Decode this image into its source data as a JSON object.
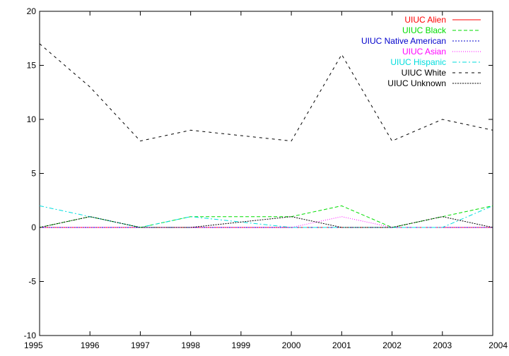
{
  "chart_data": {
    "type": "line",
    "title": "",
    "xlabel": "",
    "ylabel": "",
    "x": [
      1995,
      1996,
      1997,
      1998,
      1999,
      2000,
      2001,
      2002,
      2003,
      2004
    ],
    "xlim": [
      1995,
      2004
    ],
    "ylim": [
      -10,
      20
    ],
    "y_ticks": [
      -10,
      -5,
      0,
      5,
      10,
      15,
      20
    ],
    "x_ticks": [
      1995,
      1996,
      1997,
      1998,
      1999,
      2000,
      2001,
      2002,
      2003,
      2004
    ],
    "grid": false,
    "legend_position": "top-right",
    "series": [
      {
        "name": "UIUC Alien",
        "color": "#ff0000",
        "dash": "solid",
        "values": [
          0,
          0,
          0,
          0,
          0,
          0,
          0,
          0,
          0,
          0
        ]
      },
      {
        "name": "UIUC Black",
        "color": "#00dd00",
        "dash": "dash",
        "values": [
          0,
          1,
          0,
          1,
          1,
          1,
          2,
          0,
          1,
          2
        ]
      },
      {
        "name": "UIUC Native American",
        "color": "#0000cc",
        "dash": "dot",
        "values": [
          0,
          0,
          0,
          0,
          0,
          0,
          0,
          0,
          0,
          0
        ]
      },
      {
        "name": "UIUC Asian",
        "color": "#ff00ff",
        "dash": "fine-dot",
        "values": [
          0,
          0,
          0,
          0,
          0,
          0,
          1,
          0,
          0,
          0
        ]
      },
      {
        "name": "UIUC Hispanic",
        "color": "#00dddd",
        "dash": "dash-dot",
        "values": [
          2,
          1,
          0,
          1,
          0.5,
          0,
          0,
          0,
          0,
          2
        ]
      },
      {
        "name": "UIUC White",
        "color": "#000000",
        "dash": "sparse-dash",
        "values": [
          17,
          13,
          8,
          9,
          8.5,
          8,
          16,
          8,
          10,
          9
        ]
      },
      {
        "name": "UIUC Unknown",
        "color": "#000000",
        "dash": "dense-dot",
        "values": [
          0,
          1,
          0,
          0,
          0.5,
          1,
          0,
          0,
          1,
          0
        ]
      }
    ]
  }
}
